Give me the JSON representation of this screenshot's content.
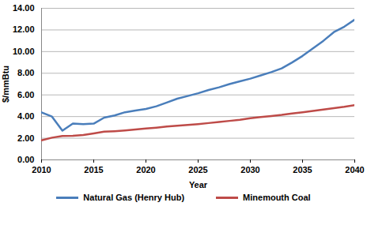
{
  "chart_data": {
    "type": "line",
    "x_label": "Year",
    "y_label": "$/mmBtu",
    "x": [
      2010,
      2011,
      2012,
      2013,
      2014,
      2015,
      2016,
      2017,
      2018,
      2019,
      2020,
      2021,
      2022,
      2023,
      2024,
      2025,
      2026,
      2027,
      2028,
      2029,
      2030,
      2031,
      2032,
      2033,
      2034,
      2035,
      2036,
      2037,
      2038,
      2039,
      2040
    ],
    "series": [
      {
        "name": "Natural Gas (Henry Hub)",
        "color": "#4a7ebb",
        "values": [
          4.39,
          4.0,
          2.7,
          3.35,
          3.3,
          3.35,
          3.9,
          4.1,
          4.4,
          4.55,
          4.7,
          4.95,
          5.3,
          5.65,
          5.9,
          6.15,
          6.45,
          6.7,
          7.0,
          7.25,
          7.5,
          7.8,
          8.1,
          8.45,
          9.0,
          9.6,
          10.3,
          11.0,
          11.8,
          12.3,
          12.95
        ]
      },
      {
        "name": "Minemouth Coal",
        "color": "#be4b48",
        "values": [
          1.8,
          2.05,
          2.2,
          2.22,
          2.3,
          2.45,
          2.6,
          2.65,
          2.72,
          2.8,
          2.9,
          2.98,
          3.08,
          3.15,
          3.22,
          3.3,
          3.4,
          3.5,
          3.6,
          3.7,
          3.85,
          3.95,
          4.05,
          4.15,
          4.28,
          4.4,
          4.52,
          4.65,
          4.78,
          4.9,
          5.05
        ]
      }
    ],
    "xlim": [
      2010,
      2040
    ],
    "xticks": [
      2010,
      2015,
      2020,
      2025,
      2030,
      2035,
      2040
    ],
    "ylim": [
      0,
      14
    ],
    "yticks": [
      {
        "value": 0,
        "label": "0.00"
      },
      {
        "value": 2,
        "label": "2.00"
      },
      {
        "value": 4,
        "label": "4.00"
      },
      {
        "value": 6,
        "label": "6.00"
      },
      {
        "value": 8,
        "label": "8.00"
      },
      {
        "value": 10,
        "label": "10.00"
      },
      {
        "value": 12,
        "label": "12.00"
      },
      {
        "value": 14,
        "label": "14.00"
      }
    ],
    "grid": true,
    "legend": "bottom"
  }
}
